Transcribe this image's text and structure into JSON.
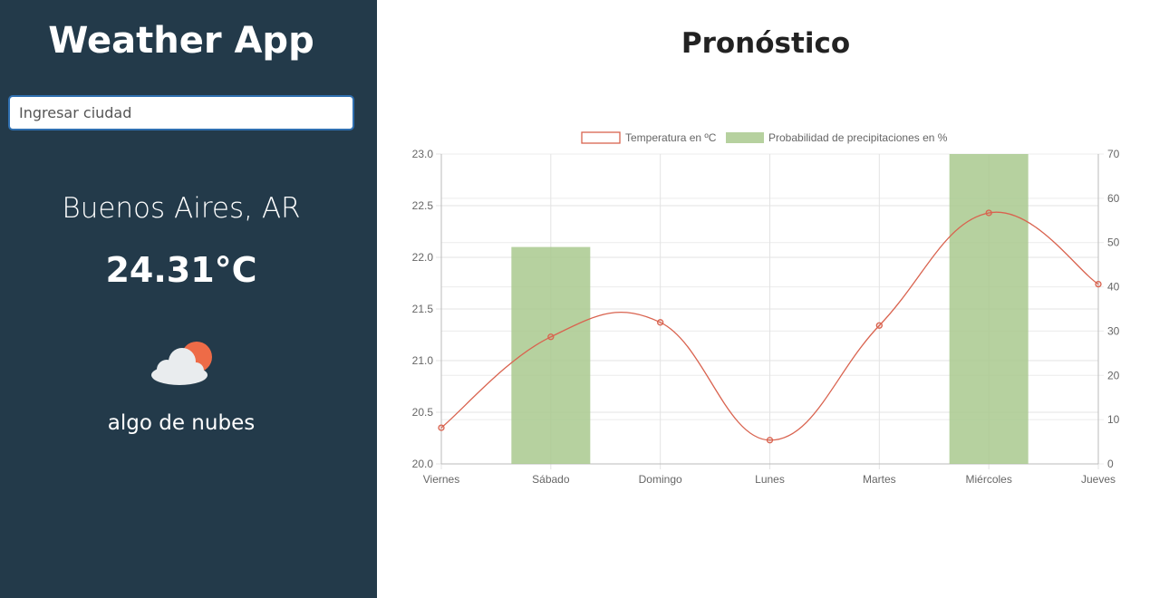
{
  "sidebar": {
    "app_title": "Weather App",
    "search": {
      "placeholder": "Ingresar ciudad",
      "value": ""
    },
    "city": "Buenos Aires, AR",
    "temperature": "24.31°C",
    "icon": "partly-cloudy-icon",
    "description": "algo de nubes"
  },
  "main": {
    "title": "Pronóstico"
  },
  "colors": {
    "sidebar_bg": "#233a4a",
    "line": "#d9634f",
    "bars": "#a9c98e"
  },
  "chart_data": {
    "type": "bar",
    "categories": [
      "Viernes",
      "Sábado",
      "Domingo",
      "Lunes",
      "Martes",
      "Miércoles",
      "Jueves"
    ],
    "series": [
      {
        "name": "Temperatura en ºC",
        "type": "line",
        "axis": "left",
        "values": [
          20.35,
          21.23,
          21.37,
          20.23,
          21.34,
          22.43,
          21.74
        ]
      },
      {
        "name": "Probabilidad de precipitaciones en %",
        "type": "bar",
        "axis": "right",
        "values": [
          0,
          49,
          0,
          0,
          0,
          70,
          0
        ]
      }
    ],
    "y_left": {
      "range": [
        20.0,
        23.0
      ],
      "ticks": [
        "20.0",
        "20.5",
        "21.0",
        "21.5",
        "22.0",
        "22.5",
        "23.0"
      ]
    },
    "y_right": {
      "range": [
        0,
        70
      ],
      "ticks": [
        "0",
        "10",
        "20",
        "30",
        "40",
        "50",
        "60",
        "70"
      ]
    },
    "grid": true,
    "legend": "top"
  }
}
